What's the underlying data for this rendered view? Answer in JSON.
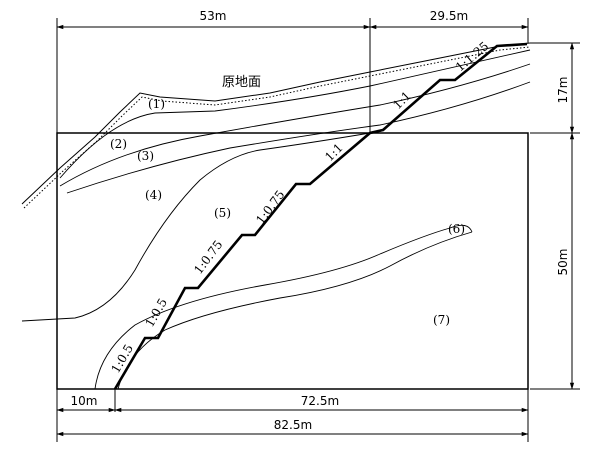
{
  "dimensions": {
    "top_left": "53m",
    "top_right": "29.5m",
    "right_upper": "17m",
    "right_lower": "50m",
    "bottom_small": "10m",
    "bottom_mid": "72.5m",
    "bottom_total": "82.5m"
  },
  "ground_label": "原地面",
  "layers": [
    "(1)",
    "(2)",
    "(3)",
    "(4)",
    "(5)",
    "(6)",
    "(7)"
  ],
  "slope_ratios": [
    "1:0.5",
    "1:0.5",
    "1:0.75",
    "1:0.75",
    "1:1",
    "1:1",
    "1:1.25"
  ]
}
